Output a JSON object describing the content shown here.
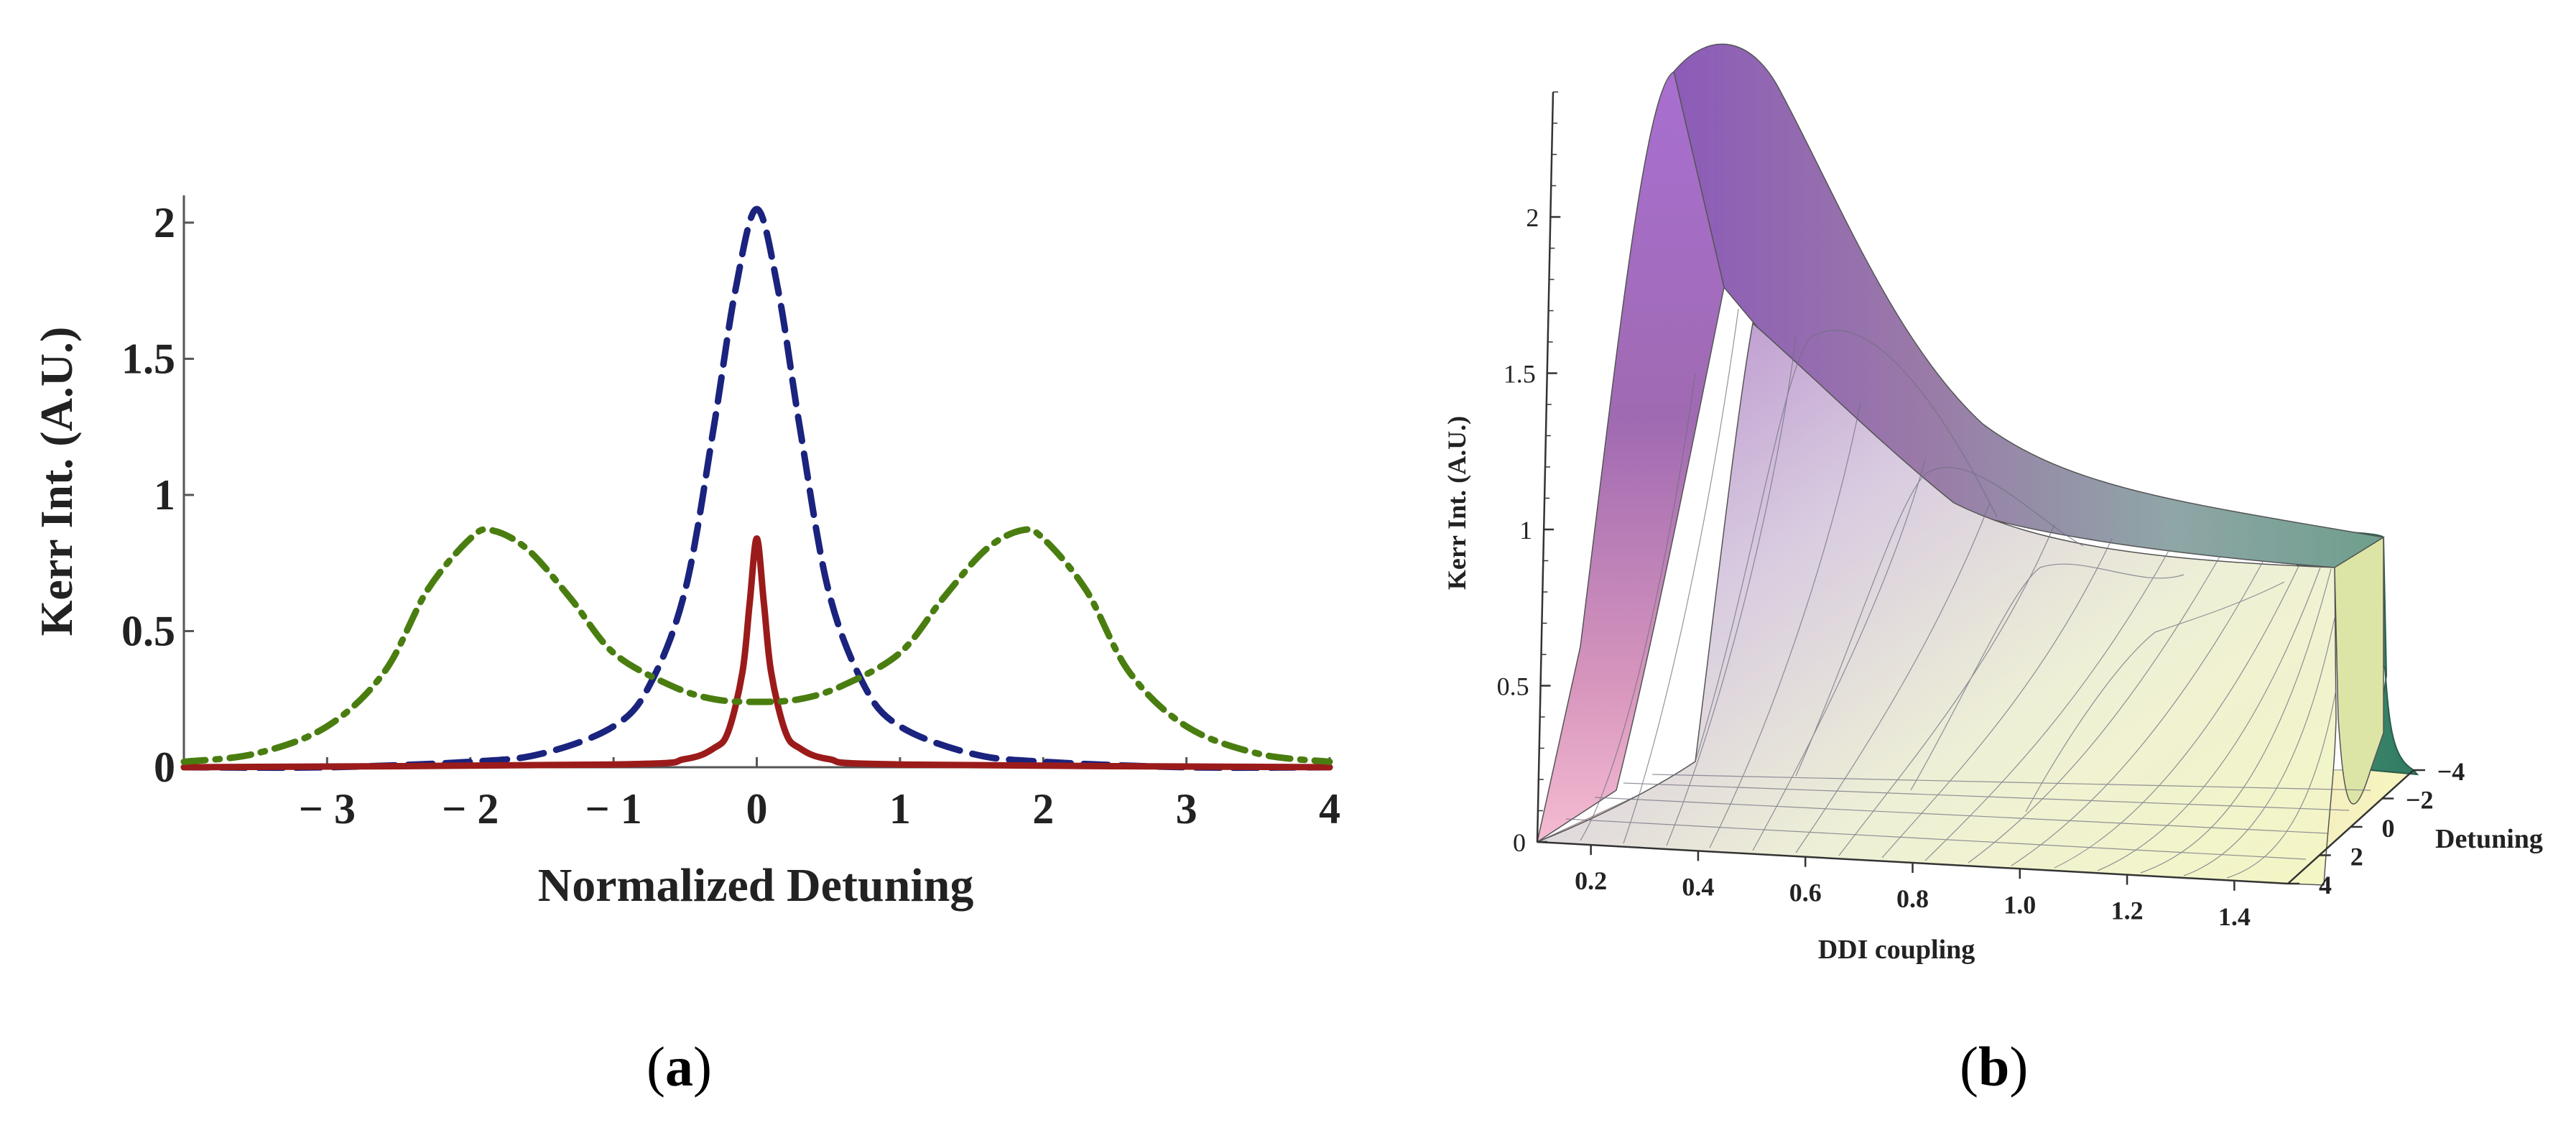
{
  "chart_data": [
    {
      "type": "line",
      "panel": "a",
      "title": "",
      "xlabel": "Normalized Detuning",
      "ylabel": "Kerr Int. (A.U.)",
      "xlim": [
        -4,
        4
      ],
      "ylim": [
        0,
        2.1
      ],
      "xticks": [
        -3,
        -2,
        -1,
        0,
        1,
        2,
        3,
        4
      ],
      "xtick_labels": [
        "− 3",
        "− 2",
        "− 1",
        "0",
        "1",
        "2",
        "3",
        "4"
      ],
      "yticks": [
        0,
        0.5,
        1,
        1.5,
        2
      ],
      "ytick_labels": [
        "0",
        "0.5",
        "1",
        "1.5",
        "2"
      ],
      "series": [
        {
          "name": "dashed (navy)",
          "color": "#1a237e",
          "style": "dashed",
          "x": [
            -4,
            -3,
            -2,
            -1.5,
            -1,
            -0.75,
            -0.5,
            -0.3,
            -0.15,
            0,
            0.15,
            0.3,
            0.5,
            0.75,
            1,
            1.5,
            2,
            3,
            4
          ],
          "y": [
            0.0,
            0.0,
            0.02,
            0.05,
            0.15,
            0.3,
            0.65,
            1.25,
            1.75,
            2.05,
            1.75,
            1.25,
            0.65,
            0.3,
            0.15,
            0.05,
            0.02,
            0.0,
            0.0
          ]
        },
        {
          "name": "solid (red)",
          "color": "#9b1b1b",
          "style": "solid",
          "x": [
            -4,
            -1,
            -0.5,
            -0.3,
            -0.2,
            -0.1,
            -0.05,
            0,
            0.05,
            0.1,
            0.2,
            0.3,
            0.5,
            1,
            4
          ],
          "y": [
            0.0,
            0.01,
            0.03,
            0.07,
            0.13,
            0.35,
            0.6,
            0.84,
            0.6,
            0.35,
            0.13,
            0.07,
            0.03,
            0.01,
            0.0
          ]
        },
        {
          "name": "dash-dot (green)",
          "color": "#4a7d10",
          "style": "dashdot",
          "x": [
            -4,
            -3.5,
            -3,
            -2.6,
            -2.3,
            -2,
            -1.85,
            -1.6,
            -1.3,
            -1,
            -0.6,
            -0.3,
            0,
            0.3,
            0.6,
            1,
            1.3,
            1.6,
            1.85,
            2,
            2.3,
            2.6,
            3,
            3.5,
            4
          ],
          "y": [
            0.02,
            0.05,
            0.15,
            0.35,
            0.65,
            0.84,
            0.87,
            0.8,
            0.62,
            0.42,
            0.3,
            0.25,
            0.24,
            0.25,
            0.3,
            0.42,
            0.62,
            0.8,
            0.87,
            0.84,
            0.65,
            0.35,
            0.15,
            0.05,
            0.02
          ]
        }
      ]
    },
    {
      "type": "surface3d",
      "panel": "b",
      "title": "",
      "xlabel": "DDI coupling",
      "ylabel": "Detuning",
      "zlabel": "Kerr Int. (A.U.)",
      "xlim": [
        0.1,
        1.5
      ],
      "ylim": [
        -4,
        4
      ],
      "zlim": [
        0,
        2.4
      ],
      "xticks": [
        0.2,
        0.4,
        0.6,
        0.8,
        1.0,
        1.2,
        1.4
      ],
      "xtick_labels": [
        "0.2",
        "0.4",
        "0.6",
        "0.8",
        "1.0",
        "1.2",
        "1.4"
      ],
      "yticks": [
        -4,
        -2,
        0,
        2,
        4
      ],
      "ytick_labels": [
        "−4",
        "−2",
        "0",
        "2",
        "4"
      ],
      "zticks": [
        0,
        0.5,
        1,
        1.5,
        2
      ],
      "ztick_labels": [
        "0",
        "0.5",
        "1",
        "1.5",
        "2"
      ],
      "peak_value": 2.4,
      "peak_ddi_coupling": 0.5,
      "end_value_at_max_coupling": 0.9
    }
  ],
  "captions": {
    "a_open": "(",
    "a_letter": "a",
    "a_close": ")",
    "b_open": "(",
    "b_letter": "b",
    "b_close": ")"
  }
}
